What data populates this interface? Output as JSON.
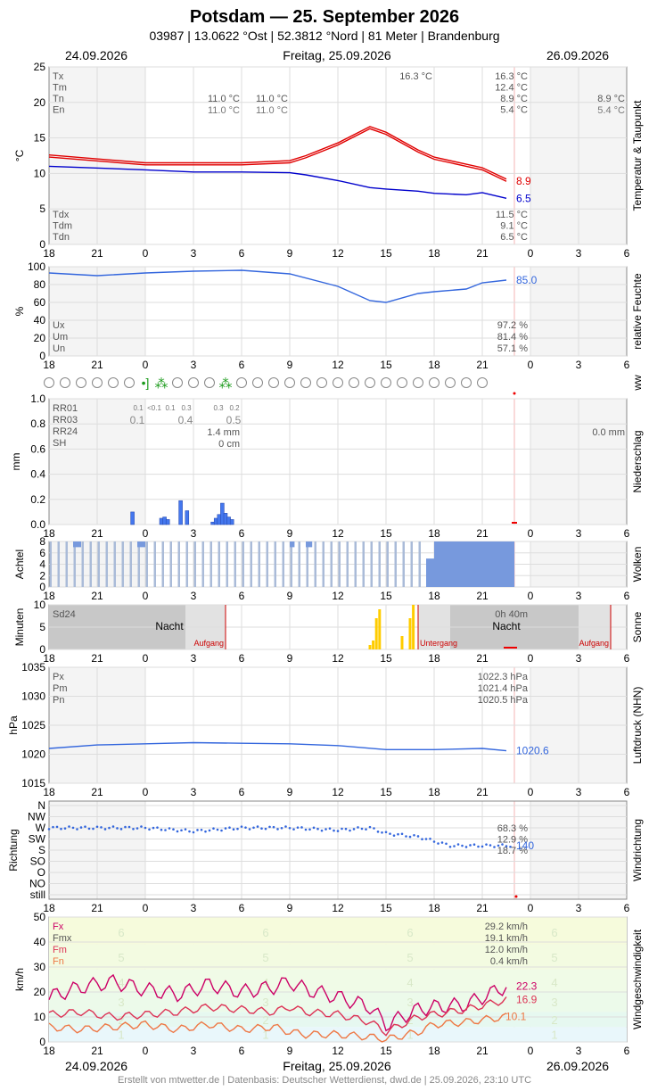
{
  "header": {
    "title": "Potsdam  —  25. September 2026",
    "subtitle": "03987  |  13.0622 °Ost  |  52.3812 °Nord  |  81 Meter  |  Brandenburg"
  },
  "dates": {
    "left": "24.09.2026",
    "center": "Freitag, 25.09.2026",
    "right": "26.09.2026"
  },
  "footer": "Erstellt von mtwetter.de | Datenbasis: Deutscher Wetterdienst, dwd.de | 25.09.2026, 23:10 UTC",
  "colors": {
    "temp": "#e00000",
    "dew": "#0000cc",
    "humid": "#3366dd",
    "precip": "#4477ee",
    "sun": "#ffcc00",
    "wind_fx": "#cc0066",
    "wind_fm": "#dd3355",
    "wind_fn": "#ee7744",
    "grid": "#dddddd"
  },
  "x_axis": {
    "ticks": [
      "18",
      "21",
      "0",
      "3",
      "6",
      "9",
      "12",
      "15",
      "18",
      "21",
      "0",
      "3",
      "6"
    ]
  },
  "chart_data": [
    {
      "type": "line",
      "title": "Temperatur & Taupunkt",
      "ylabel": "°C",
      "ylim": [
        0,
        25
      ],
      "yticks": [
        "0",
        "5",
        "10",
        "15",
        "20",
        "25"
      ],
      "x_hours": [
        -6,
        0,
        3,
        6,
        9,
        10,
        12,
        14,
        15,
        17,
        18,
        20,
        21,
        22.5
      ],
      "series": [
        {
          "name": "T",
          "values": [
            12.3,
            11.2,
            11.2,
            11.2,
            11.5,
            12.2,
            14.0,
            16.3,
            15.5,
            13.0,
            12.0,
            11.0,
            10.5,
            8.9
          ]
        },
        {
          "name": "Td",
          "values": [
            11.0,
            10.5,
            10.2,
            10.2,
            10.1,
            9.8,
            9.0,
            8.0,
            7.8,
            7.5,
            7.2,
            7.0,
            7.3,
            6.5
          ]
        }
      ],
      "end_labels": {
        "temp": "8.9",
        "dew": "6.5"
      },
      "stats_top": [
        {
          "label": "Tx",
          "value": "16.3 °C"
        },
        {
          "label": "Tm",
          "value": "12.4 °C"
        },
        {
          "label": "Tn",
          "value": "8.9 °C"
        },
        {
          "label": "En",
          "value": "5.4 °C"
        }
      ],
      "stats_bottom": [
        {
          "label": "Tdx",
          "value": "11.5 °C"
        },
        {
          "label": "Tdm",
          "value": "9.1 °C"
        },
        {
          "label": "Tdn",
          "value": "6.5 °C"
        }
      ],
      "prev": {
        "tn": "11.0 °C",
        "en": "11.0 °C",
        "tn2": "11.0 °C",
        "en2": "11.0 °C"
      },
      "next": {
        "tn": "8.9 °C",
        "en": "5.4 °C"
      },
      "tx_marker": "16.3 °C"
    },
    {
      "type": "line",
      "title": "relative Feuchte",
      "ylabel": "%",
      "ylim": [
        0,
        100
      ],
      "yticks": [
        "0",
        "20",
        "40",
        "60",
        "80",
        "100"
      ],
      "x_hours": [
        -6,
        -3,
        0,
        3,
        6,
        9,
        12,
        14,
        15,
        17,
        18,
        20,
        21,
        22.5
      ],
      "series": [
        {
          "name": "U",
          "values": [
            93,
            90,
            93,
            95,
            96,
            92,
            78,
            62,
            60,
            70,
            72,
            75,
            82,
            85
          ]
        }
      ],
      "end_label": "85.0",
      "stats": [
        {
          "label": "Ux",
          "value": "97.2 %"
        },
        {
          "label": "Um",
          "value": "81.4 %"
        },
        {
          "label": "Un",
          "value": "57.1 %"
        }
      ]
    },
    {
      "type": "scatter",
      "title": "ww",
      "symbols": [
        "o",
        "o",
        "o",
        "o",
        "o",
        "o",
        "rain",
        "shower",
        "o",
        "o",
        "o",
        "shower",
        "o",
        "o",
        "o",
        "o",
        "o",
        "o",
        "o",
        "o",
        "o",
        "o",
        "o",
        "o",
        "o",
        "o",
        "o",
        "o"
      ]
    },
    {
      "type": "bar",
      "title": "Niederschlag",
      "ylabel": "mm",
      "ylim": [
        0,
        1.0
      ],
      "yticks": [
        "0.0",
        "0.2",
        "0.4",
        "0.6",
        "0.8",
        "1.0"
      ],
      "bars": [
        {
          "x": -0.8,
          "v": 0.1
        },
        {
          "x": 1.0,
          "v": 0.05
        },
        {
          "x": 1.2,
          "v": 0.06
        },
        {
          "x": 1.4,
          "v": 0.04
        },
        {
          "x": 2.2,
          "v": 0.19
        },
        {
          "x": 2.6,
          "v": 0.11
        },
        {
          "x": 4.2,
          "v": 0.02
        },
        {
          "x": 4.4,
          "v": 0.05
        },
        {
          "x": 4.6,
          "v": 0.08
        },
        {
          "x": 4.8,
          "v": 0.17
        },
        {
          "x": 5.0,
          "v": 0.09
        },
        {
          "x": 5.2,
          "v": 0.06
        },
        {
          "x": 5.4,
          "v": 0.04
        }
      ],
      "labels": [
        "RR01",
        "RR03",
        "RR24",
        "SH"
      ],
      "rr01_small": [
        "0.1",
        "<0.1",
        "0.1",
        "0.3",
        "0.3",
        "0.2"
      ],
      "rr03": [
        "0.1",
        "0.4",
        "0.5"
      ],
      "rr24": "1.4 mm",
      "sh": "0 cm",
      "next_rr24": "0.0 mm"
    },
    {
      "type": "bar",
      "title": "Wolken",
      "ylabel": "Achtel",
      "ylim": [
        0,
        8
      ],
      "yticks": [
        "0",
        "2",
        "4",
        "6",
        "8"
      ],
      "mostly_value": 8,
      "breaks": [
        {
          "from": -4.5,
          "to": -4.0,
          "v": 7
        },
        {
          "from": -0.5,
          "to": 0.0,
          "v": 7
        },
        {
          "from": 9.0,
          "to": 9.3,
          "v": 7
        },
        {
          "from": 10.0,
          "to": 10.4,
          "v": 7
        }
      ],
      "clear_from": 17.5
    },
    {
      "type": "bar",
      "title": "Sonne",
      "ylabel": "Minuten",
      "ylim": [
        0,
        10
      ],
      "yticks": [
        "0",
        "5",
        "10"
      ],
      "bars": [
        {
          "x": 14.0,
          "v": 1
        },
        {
          "x": 14.2,
          "v": 2
        },
        {
          "x": 14.4,
          "v": 7
        },
        {
          "x": 14.6,
          "v": 9
        },
        {
          "x": 16.0,
          "v": 3
        },
        {
          "x": 16.5,
          "v": 7
        },
        {
          "x": 16.7,
          "v": 10
        }
      ],
      "sd24_label": "Sd24",
      "sd24_value": "0h 40m",
      "night_label": "Nacht",
      "sunrise_label": "Aufgang",
      "sunset_label": "Untergang"
    },
    {
      "type": "line",
      "title": "Luftdruck (NHN)",
      "ylabel": "hPa",
      "ylim": [
        1015,
        1035
      ],
      "yticks": [
        "1015",
        "1020",
        "1025",
        "1030",
        "1035"
      ],
      "x_hours": [
        -6,
        -3,
        0,
        3,
        6,
        9,
        12,
        15,
        18,
        21,
        22.5
      ],
      "series": [
        {
          "name": "P",
          "values": [
            1021.0,
            1021.6,
            1021.8,
            1022.0,
            1021.9,
            1021.8,
            1021.5,
            1020.8,
            1020.8,
            1021.0,
            1020.6
          ]
        }
      ],
      "end_label": "1020.6",
      "stats": [
        {
          "label": "Px",
          "value": "1022.3 hPa"
        },
        {
          "label": "Pm",
          "value": "1021.4 hPa"
        },
        {
          "label": "Pn",
          "value": "1020.5 hPa"
        }
      ]
    },
    {
      "type": "scatter",
      "title": "Windrichtung",
      "ylabel": "Richtung",
      "categories": [
        "N",
        "NW",
        "W",
        "SW",
        "S",
        "SO",
        "O",
        "NO",
        "still"
      ],
      "stats": [
        "68.3 %",
        "12.9 %",
        "18.7 %"
      ],
      "end_label": "140",
      "x_hours": [
        -6,
        0,
        3,
        6,
        9,
        12,
        14,
        15,
        17,
        18,
        19,
        20,
        21,
        22.5
      ],
      "values": [
        2,
        2,
        2.3,
        2,
        2,
        2.2,
        2,
        2.5,
        2.8,
        3.2,
        3.6,
        3.6,
        3.6,
        3.6
      ]
    },
    {
      "type": "line",
      "title": "Windgeschwindigkeit",
      "ylabel": "km/h",
      "ylim": [
        0,
        50
      ],
      "yticks": [
        "0",
        "10",
        "20",
        "30",
        "40",
        "50"
      ],
      "x_hours": [
        -6,
        -4,
        -2,
        0,
        2,
        4,
        6,
        8,
        9,
        10,
        12,
        14,
        15,
        17,
        18,
        20,
        22.5
      ],
      "series": [
        {
          "name": "Fx",
          "values": [
            18,
            22,
            24,
            21,
            19,
            23,
            20,
            22,
            24,
            21,
            18,
            14,
            7,
            13,
            14,
            15,
            22.3
          ]
        },
        {
          "name": "Fm",
          "values": [
            11,
            12,
            10,
            11,
            12,
            14,
            13,
            12,
            14,
            12,
            11,
            8,
            4,
            10,
            11,
            13,
            16.9
          ]
        },
        {
          "name": "Fn",
          "values": [
            6,
            5,
            6,
            7,
            5,
            7,
            5,
            6,
            4,
            3,
            3,
            2,
            1,
            4,
            7,
            8,
            10.1
          ]
        }
      ],
      "end_labels": {
        "fx": "22.3",
        "fm": "16.9",
        "fn": "10.1"
      },
      "stats": [
        {
          "label": "Fx",
          "value": "29.2 km/h"
        },
        {
          "label": "Fmx",
          "value": "19.1 km/h"
        },
        {
          "label": "Fm",
          "value": "12.0 km/h"
        },
        {
          "label": "Fn",
          "value": "0.4 km/h"
        }
      ],
      "beaufort": [
        "1",
        "2",
        "3",
        "4",
        "5",
        "6"
      ]
    }
  ]
}
